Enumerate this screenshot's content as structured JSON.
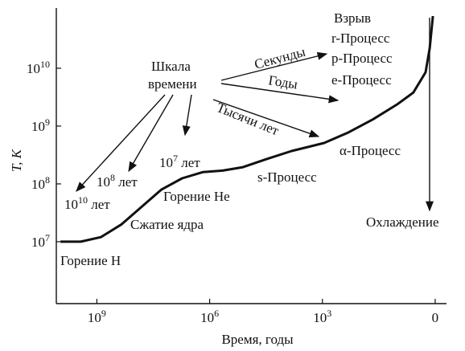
{
  "chart_data": {
    "type": "line",
    "xlabel": "Время, годы",
    "ylabel": "T, K",
    "xscale": "log",
    "yscale": "log",
    "xlim": [
      12000000000,
      0.5
    ],
    "ylim": [
      850000,
      110000000000
    ],
    "xticks": [
      {
        "value": 1000000000,
        "label": "10^9"
      },
      {
        "value": 1000000,
        "label": "10^6"
      },
      {
        "value": 1000,
        "label": "10^3"
      },
      {
        "value": 1,
        "label": "0"
      }
    ],
    "yticks": [
      {
        "value": 10000000,
        "label": "10^7"
      },
      {
        "value": 100000000,
        "label": "10^8"
      },
      {
        "value": 1000000000,
        "label": "10^9"
      },
      {
        "value": 10000000000,
        "label": "10^10"
      }
    ],
    "color": "#111111",
    "x": [
      9300000000,
      2700000000,
      780000000,
      220000000,
      65000000,
      19000000,
      5400000,
      1500000,
      450000,
      130000,
      30000,
      6600,
      900,
      200,
      46,
      10,
      3.8,
      1.8,
      1.4,
      1.15
    ],
    "values": [
      10000000,
      10000000,
      12000000,
      20000000,
      40000000,
      80000000,
      125000000,
      160000000,
      170000000,
      195000000,
      270000000,
      370000000,
      510000000,
      780000000,
      1300000000,
      2400000000,
      3800000000,
      8500000000,
      22000000000,
      80000000000
    ],
    "annotations": [
      "Взрыв",
      "r-Процесс",
      "p-Процесс",
      "e-Процесс",
      "Шкала",
      "времени",
      "Секунды",
      "Годы",
      "Тысячи лет",
      "α-Процесс",
      "s-Процесс",
      "10^7 лет",
      "Горение He",
      "10^8 лет",
      "10^10 лет",
      "Сжатие ядра",
      "Горение H",
      "Охлаждение"
    ]
  }
}
